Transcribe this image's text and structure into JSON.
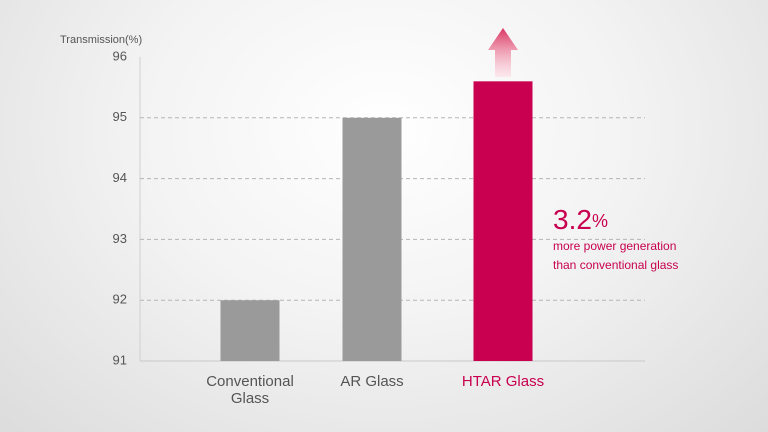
{
  "chart_data": {
    "type": "bar",
    "y_label": "Transmission(%)",
    "categories": [
      "Conventional Glass",
      "AR Glass",
      "HTAR Glass"
    ],
    "values": [
      92,
      95,
      95.6
    ],
    "colors": [
      "#9a9a9a",
      "#9a9a9a",
      "#c8004f"
    ],
    "label_colors": [
      "#555555",
      "#555555",
      "#c8004f"
    ],
    "ylim": [
      91,
      96
    ],
    "yticks": [
      91,
      92,
      93,
      94,
      95,
      96
    ],
    "grid": true,
    "annotation": {
      "value": "3.2",
      "unit": "%",
      "lines": [
        "more power generation",
        "than conventional glass"
      ]
    }
  }
}
